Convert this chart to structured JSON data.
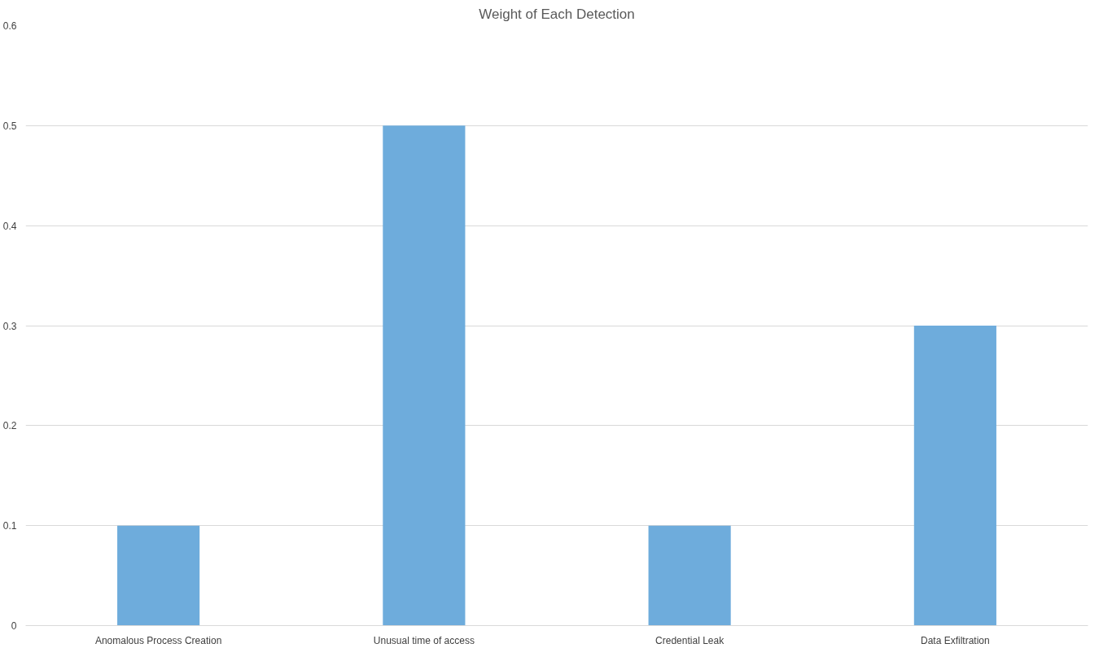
{
  "chart_data": {
    "type": "bar",
    "title": "Weight of Each Detection",
    "categories": [
      "Anomalous Process Creation",
      "Unusual time of access",
      "Credential Leak",
      "Data Exfiltration"
    ],
    "values": [
      0.1,
      0.5,
      0.1,
      0.3
    ],
    "color": "#6eacdc",
    "ylim": [
      0,
      0.6
    ],
    "yticks": [
      0,
      0.1,
      0.2,
      0.3,
      0.4,
      0.5,
      0.6
    ],
    "grid": "y"
  }
}
